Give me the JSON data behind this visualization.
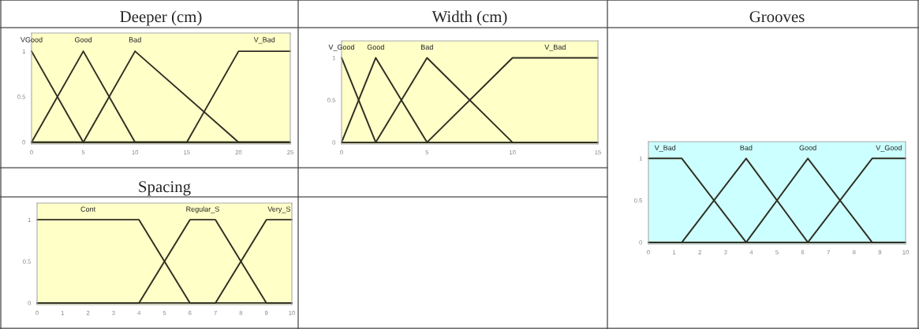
{
  "chart_data": [
    {
      "type": "line",
      "title": "Deeper (cm)",
      "xlim": [
        0,
        25
      ],
      "xticks": [
        0,
        5,
        10,
        15,
        20,
        25
      ],
      "ylim": [
        -0.02,
        1.2
      ],
      "yticks": [
        0,
        0.5,
        1
      ],
      "line_style": "solid",
      "series": [
        {
          "name": "VGood",
          "color": "#2e2e22",
          "x": [
            0,
            5,
            25
          ],
          "values": [
            1,
            0,
            0
          ]
        },
        {
          "name": "Good",
          "color": "#2e2e22",
          "x": [
            0,
            5,
            10,
            25
          ],
          "values": [
            0,
            1,
            0,
            0
          ]
        },
        {
          "name": "Bad",
          "color": "#2e2e22",
          "x": [
            0,
            5,
            10,
            20,
            25
          ],
          "values": [
            0,
            0,
            1,
            0,
            0
          ]
        },
        {
          "name": "V_Bad",
          "color": "#2e2e22",
          "x": [
            0,
            15,
            20,
            25
          ],
          "values": [
            0,
            0,
            1,
            1
          ]
        }
      ]
    },
    {
      "type": "line",
      "title": "Width (cm)",
      "xlim": [
        0,
        15
      ],
      "xticks": [
        0,
        5,
        10,
        15
      ],
      "ylim": [
        -0.02,
        1.2
      ],
      "yticks": [
        0,
        0.5,
        1
      ],
      "line_style": "solid",
      "series": [
        {
          "name": "V_Good",
          "color": "#2e2e22",
          "x": [
            0,
            2,
            15
          ],
          "values": [
            1,
            0,
            0
          ]
        },
        {
          "name": "Good",
          "color": "#2e2e22",
          "x": [
            0,
            2,
            5,
            15
          ],
          "values": [
            0,
            1,
            0,
            0
          ]
        },
        {
          "name": "Bad",
          "color": "#2e2e22",
          "x": [
            0,
            2,
            5,
            10,
            15
          ],
          "values": [
            0,
            0,
            1,
            0,
            0
          ]
        },
        {
          "name": "V_Bad",
          "color": "#2e2e22",
          "x": [
            0,
            5,
            10,
            15
          ],
          "values": [
            0,
            0,
            1,
            1
          ]
        }
      ]
    },
    {
      "type": "line",
      "title": "Grooves",
      "xlim": [
        0,
        10
      ],
      "xticks": [
        0,
        1,
        2,
        3,
        4,
        5,
        6,
        7,
        8,
        9,
        10
      ],
      "ylim": [
        -0.02,
        1.2
      ],
      "yticks": [
        0,
        0.5,
        1
      ],
      "line_style": "solid",
      "series": [
        {
          "name": "V_Bad",
          "color": "#2e2e22",
          "x": [
            0,
            1.3,
            3.8,
            10
          ],
          "values": [
            1,
            1,
            0,
            0
          ]
        },
        {
          "name": "Bad",
          "color": "#2e2e22",
          "x": [
            0,
            1.3,
            3.8,
            6.2,
            10
          ],
          "values": [
            0,
            0,
            1,
            0,
            0
          ]
        },
        {
          "name": "Good",
          "color": "#2e2e22",
          "x": [
            0,
            3.8,
            6.2,
            8.7,
            10
          ],
          "values": [
            0,
            0,
            1,
            0,
            0
          ]
        },
        {
          "name": "V_Good",
          "color": "#2e2e22",
          "x": [
            0,
            6.2,
            8.7,
            10
          ],
          "values": [
            0,
            0,
            1,
            1
          ]
        }
      ]
    },
    {
      "type": "line",
      "title": "Spacing",
      "xlim": [
        0,
        10
      ],
      "xticks": [
        0,
        1,
        2,
        3,
        4,
        5,
        6,
        7,
        8,
        9,
        10
      ],
      "ylim": [
        -0.02,
        1.2
      ],
      "yticks": [
        0,
        0.5,
        1
      ],
      "line_style": "solid",
      "series": [
        {
          "name": "Cont",
          "color": "#2e2e22",
          "x": [
            0,
            4,
            6,
            10
          ],
          "values": [
            1,
            1,
            0,
            0
          ]
        },
        {
          "name": "Regular_S",
          "color": "#2e2e22",
          "x": [
            0,
            4,
            6,
            7,
            9,
            10
          ],
          "values": [
            0,
            0,
            1,
            1,
            0,
            0
          ]
        },
        {
          "name": "Very_S",
          "color": "#2e2e22",
          "x": [
            0,
            7,
            9,
            10
          ],
          "values": [
            0,
            0,
            1,
            1
          ]
        }
      ]
    }
  ]
}
